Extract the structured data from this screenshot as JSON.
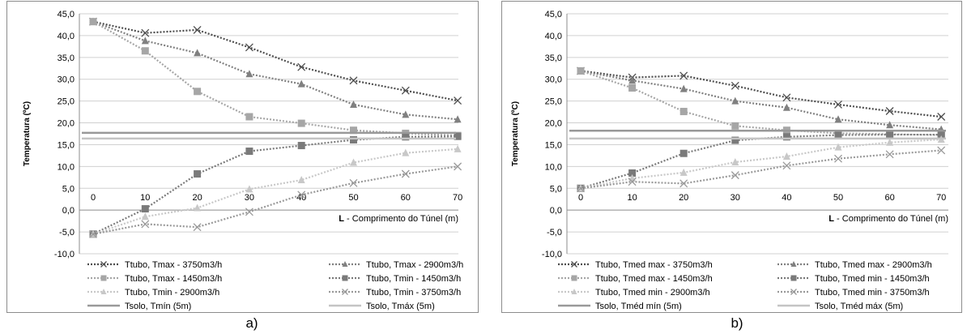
{
  "chart_data": [
    {
      "type": "line",
      "caption": "a)",
      "ylabel": "Temperatura (ºC)",
      "xlabel_bold": "L",
      "xlabel_rest": " - Comprimento do Túnel (m)",
      "x": [
        0,
        10,
        20,
        30,
        40,
        50,
        60,
        70
      ],
      "x_tick_labels": [
        "0",
        "10",
        "20",
        "30",
        "40",
        "50",
        "60",
        "70"
      ],
      "y_tick_labels": [
        "45,0",
        "40,0",
        "35,0",
        "30,0",
        "25,0",
        "20,0",
        "15,0",
        "10,0",
        "5,0",
        "0,0",
        "-5,0",
        "-10,0"
      ],
      "ylim": [
        -10,
        45
      ],
      "grid": true,
      "legend_position": "bottom",
      "series": [
        {
          "name": "Ttubo, Tmax - 3750m3/h",
          "color": "#4d4d4d",
          "marker": "x",
          "values": [
            43.2,
            40.6,
            41.3,
            37.3,
            32.8,
            29.7,
            27.4,
            25.1
          ]
        },
        {
          "name": "Ttubo, Tmax - 2900m3/h",
          "color": "#808080",
          "marker": "triangle",
          "values": [
            43.2,
            38.8,
            36.0,
            31.2,
            28.9,
            24.2,
            21.9,
            20.8
          ]
        },
        {
          "name": "Ttubo, Tmax - 1450m3/h",
          "color": "#a6a6a6",
          "marker": "square",
          "values": [
            43.2,
            36.5,
            27.2,
            21.4,
            19.9,
            18.3,
            17.6,
            17.1
          ]
        },
        {
          "name": "Ttubo, Tmin - 1450m3/h",
          "color": "#7a7a7a",
          "marker": "square",
          "values": [
            -5.5,
            0.3,
            8.3,
            13.5,
            14.8,
            16.1,
            16.8,
            16.9
          ]
        },
        {
          "name": "Ttubo, Tmin - 2900m3/h",
          "color": "#c8c8c8",
          "marker": "triangle",
          "values": [
            -5.5,
            -1.5,
            0.5,
            4.8,
            6.9,
            10.9,
            13.1,
            14.0
          ]
        },
        {
          "name": "Ttubo, Tmin - 3750m3/h",
          "color": "#999999",
          "marker": "x",
          "values": [
            -5.5,
            -3.2,
            -3.9,
            -0.4,
            3.5,
            6.2,
            8.3,
            10.0
          ]
        },
        {
          "name": "Tsolo, Tmín (5m)",
          "color": "#999999",
          "marker": "none",
          "values": [
            17.7,
            17.7,
            17.7,
            17.7,
            17.7,
            17.7,
            17.7,
            17.7
          ]
        },
        {
          "name": "Tsolo, Tmáx (5m)",
          "color": "#c4c4c4",
          "marker": "none",
          "values": [
            16.4,
            16.4,
            16.4,
            16.4,
            16.4,
            16.4,
            16.4,
            16.4
          ]
        }
      ]
    },
    {
      "type": "line",
      "caption": "b)",
      "ylabel": "Temperatura (ºC)",
      "xlabel_bold": "L",
      "xlabel_rest": " - Comprimento do Túnel (m)",
      "x": [
        0,
        10,
        20,
        30,
        40,
        50,
        60,
        70
      ],
      "x_tick_labels": [
        "0",
        "10",
        "20",
        "30",
        "40",
        "50",
        "60",
        "70"
      ],
      "y_tick_labels": [
        "45,0",
        "40,0",
        "35,0",
        "30,0",
        "25,0",
        "20,0",
        "15,0",
        "10,0",
        "5,0",
        "0,0",
        "-5,0",
        "-10,0"
      ],
      "ylim": [
        -10,
        45
      ],
      "grid": true,
      "legend_position": "bottom",
      "series": [
        {
          "name": "Ttubo, Tmed max - 3750m3/h",
          "color": "#4d4d4d",
          "marker": "x",
          "values": [
            31.9,
            30.4,
            30.8,
            28.5,
            25.8,
            24.2,
            22.7,
            21.4
          ]
        },
        {
          "name": "Ttubo, Tmed max - 2900m3/h",
          "color": "#808080",
          "marker": "triangle",
          "values": [
            31.9,
            29.7,
            27.8,
            25.0,
            23.5,
            20.8,
            19.5,
            18.5
          ]
        },
        {
          "name": "Ttubo, Tmed max - 1450m3/h",
          "color": "#a6a6a6",
          "marker": "square",
          "values": [
            31.9,
            28.0,
            22.6,
            19.3,
            18.3,
            17.6,
            17.4,
            17.2
          ]
        },
        {
          "name": "Ttubo, Tmed min - 1450m3/h",
          "color": "#7a7a7a",
          "marker": "square",
          "values": [
            5.0,
            8.5,
            13.0,
            16.0,
            16.8,
            17.2,
            17.3,
            17.3
          ]
        },
        {
          "name": "Ttubo, Tmed min - 2900m3/h",
          "color": "#c8c8c8",
          "marker": "triangle",
          "values": [
            5.0,
            7.3,
            8.6,
            11.0,
            12.3,
            14.4,
            15.5,
            16.2
          ]
        },
        {
          "name": "Ttubo, Tmed min - 3750m3/h",
          "color": "#999999",
          "marker": "x",
          "values": [
            5.0,
            6.5,
            6.1,
            8.0,
            10.2,
            11.8,
            12.8,
            13.7
          ]
        },
        {
          "name": "Tsolo, Tméd mín (5m)",
          "color": "#999999",
          "marker": "none",
          "values": [
            18.2,
            18.2,
            18.2,
            18.2,
            18.2,
            18.2,
            18.2,
            18.2
          ]
        },
        {
          "name": "Tsolo, Tméd máx (5m)",
          "color": "#c4c4c4",
          "marker": "none",
          "values": [
            16.4,
            16.4,
            16.4,
            16.4,
            16.4,
            16.4,
            16.4,
            16.4
          ]
        }
      ]
    }
  ]
}
